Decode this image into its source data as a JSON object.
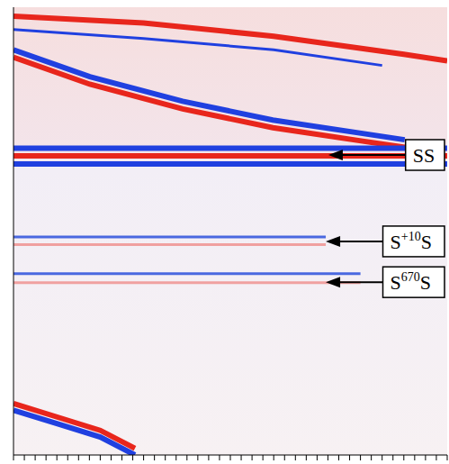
{
  "chart_data": {
    "type": "line",
    "tick_labels": false,
    "grid": false,
    "xlim": [
      0,
      100
    ],
    "ylim": [
      0,
      100
    ],
    "xticks": [
      0,
      2.5,
      5,
      7.5,
      10,
      12.5,
      15,
      17.5,
      20,
      22.5,
      25,
      27.5,
      30,
      32.5,
      35,
      37.5,
      40,
      42.5,
      45,
      47.5,
      50,
      52.5,
      55,
      57.5,
      60,
      62.5,
      65,
      67.5,
      70,
      72.5,
      75,
      77.5,
      80,
      82.5,
      85,
      87.5,
      90,
      92.5,
      95,
      97.5,
      100
    ],
    "series": [
      {
        "color": "#e8261c",
        "line_style": "bold",
        "x": [
          0,
          30,
          60,
          90,
          100
        ],
        "values": [
          2,
          3.5,
          6.5,
          10.5,
          12
        ]
      },
      {
        "color": "#2040e0",
        "line_style": "thin",
        "x": [
          0,
          30,
          60,
          85
        ],
        "values": [
          5,
          7,
          9.5,
          13
        ]
      },
      {
        "color": "#2040e0",
        "line_style": "bold",
        "x": [
          0,
          17.6,
          39,
          59.8,
          80.5,
          90.2
        ],
        "values": [
          9.5,
          15.5,
          21,
          25.2,
          28.2,
          29.6
        ]
      },
      {
        "color": "#e8261c",
        "line_style": "bold",
        "x": [
          0,
          17.6,
          39,
          59.8,
          80.5,
          90.2
        ],
        "values": [
          11.2,
          17.2,
          22.7,
          26.9,
          29.9,
          31.3
        ]
      },
      {
        "color": "#2040e0",
        "line_style": "bold",
        "x": [
          0,
          100
        ],
        "values": [
          31.5,
          31.5
        ]
      },
      {
        "color": "#e8261c",
        "line_style": "bold",
        "x": [
          0,
          100
        ],
        "values": [
          33.2,
          33.2
        ]
      },
      {
        "color": "#2040e0",
        "line_style": "bold",
        "x": [
          0,
          100
        ],
        "values": [
          35,
          35
        ]
      },
      {
        "color": "#4a68e0",
        "line_style": "thin",
        "x": [
          0,
          72
        ],
        "values": [
          51.3,
          51.3
        ]
      },
      {
        "color": "#f0a0a0",
        "line_style": "thin",
        "x": [
          0,
          72
        ],
        "values": [
          53,
          53
        ]
      },
      {
        "color": "#4a68e0",
        "line_style": "thin",
        "x": [
          0,
          80
        ],
        "values": [
          59.5,
          59.5
        ]
      },
      {
        "color": "#f0a0a0",
        "line_style": "thin",
        "x": [
          0,
          80
        ],
        "values": [
          61.5,
          61.5
        ]
      },
      {
        "color": "#e8261c",
        "line_style": "bold",
        "x": [
          0,
          10,
          20,
          28
        ],
        "values": [
          88.5,
          91.5,
          94.5,
          98.5
        ]
      },
      {
        "color": "#2040e0",
        "line_style": "bold",
        "x": [
          0,
          10,
          20,
          28
        ],
        "values": [
          90,
          93,
          96,
          100
        ]
      }
    ],
    "annotations": [
      {
        "text": "SS",
        "sup": "",
        "tail": "",
        "x": 72.6,
        "y": 33
      },
      {
        "text": "S",
        "sup": "+10",
        "tail": "S",
        "x": 72,
        "y": 52.3
      },
      {
        "text": "S",
        "sup": "670",
        "tail": "S",
        "x": 72,
        "y": 61.4
      }
    ]
  }
}
